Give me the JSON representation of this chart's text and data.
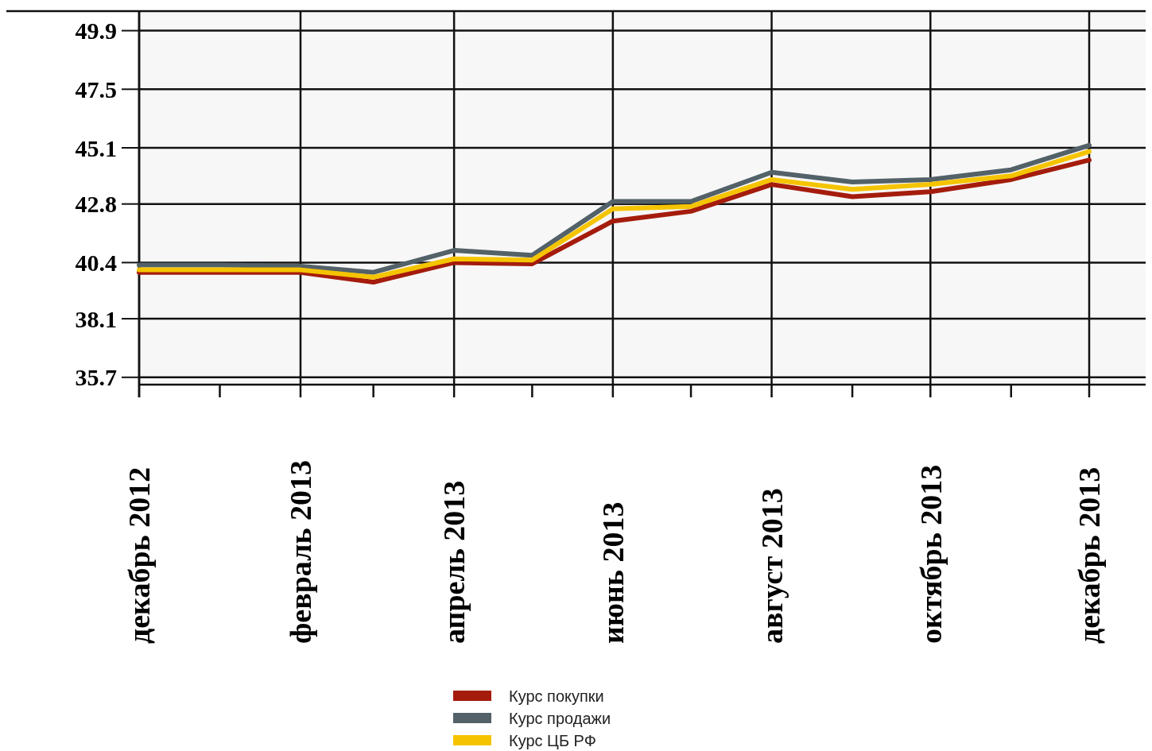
{
  "chart_data": {
    "type": "line",
    "x": [
      "2012-12",
      "2013-01",
      "2013-02",
      "2013-03",
      "2013-04",
      "2013-05",
      "2013-06",
      "2013-07",
      "2013-08",
      "2013-09",
      "2013-10",
      "2013-11",
      "2013-12"
    ],
    "xlim": [
      "2012-12",
      "2013-12-25"
    ],
    "xticks": [
      {
        "value": "2012-12",
        "label": "декабрь 2012"
      },
      {
        "value": "2013-01",
        "label": null
      },
      {
        "value": "2013-02",
        "label": "февраль 2013"
      },
      {
        "value": "2013-03",
        "label": null
      },
      {
        "value": "2013-04",
        "label": "апрель 2013"
      },
      {
        "value": "2013-05",
        "label": null
      },
      {
        "value": "2013-06",
        "label": "июнь 2013"
      },
      {
        "value": "2013-07",
        "label": null
      },
      {
        "value": "2013-08",
        "label": "август 2013"
      },
      {
        "value": "2013-09",
        "label": null
      },
      {
        "value": "2013-10",
        "label": "октябрь 2013"
      },
      {
        "value": "2013-11",
        "label": null
      },
      {
        "value": "2013-12",
        "label": "декабрь 2013"
      }
    ],
    "ylim": [
      35.4,
      50.7
    ],
    "yticks": [
      35.7,
      38.1,
      40.4,
      42.8,
      45.1,
      47.5,
      49.9
    ],
    "grid": true,
    "legend": "bottom",
    "marker": "none",
    "line_style": "solid",
    "series": [
      {
        "name": "Курс покупки",
        "color": "#a51c0c",
        "values": [
          40.0,
          40.0,
          40.0,
          39.6,
          40.4,
          40.35,
          42.1,
          42.5,
          43.6,
          43.1,
          43.3,
          43.8,
          44.6
        ]
      },
      {
        "name": "Курс продажи",
        "color": "#536168",
        "values": [
          40.3,
          40.3,
          40.25,
          40.0,
          40.9,
          40.7,
          42.9,
          42.9,
          44.1,
          43.7,
          43.8,
          44.2,
          45.2
        ]
      },
      {
        "name": "Курс ЦБ РФ",
        "color": "#f5c400",
        "values": [
          40.1,
          40.1,
          40.1,
          39.8,
          40.55,
          40.5,
          42.6,
          42.7,
          43.8,
          43.4,
          43.6,
          43.95,
          44.95
        ]
      }
    ]
  }
}
